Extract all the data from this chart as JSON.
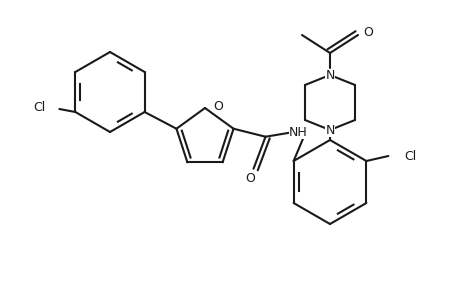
{
  "bg_color": "#ffffff",
  "line_color": "#1a1a1a",
  "line_width": 1.5,
  "figsize": [
    4.6,
    3.0
  ],
  "dpi": 100,
  "xlim": [
    0,
    4.6
  ],
  "ylim": [
    0,
    3.0
  ]
}
